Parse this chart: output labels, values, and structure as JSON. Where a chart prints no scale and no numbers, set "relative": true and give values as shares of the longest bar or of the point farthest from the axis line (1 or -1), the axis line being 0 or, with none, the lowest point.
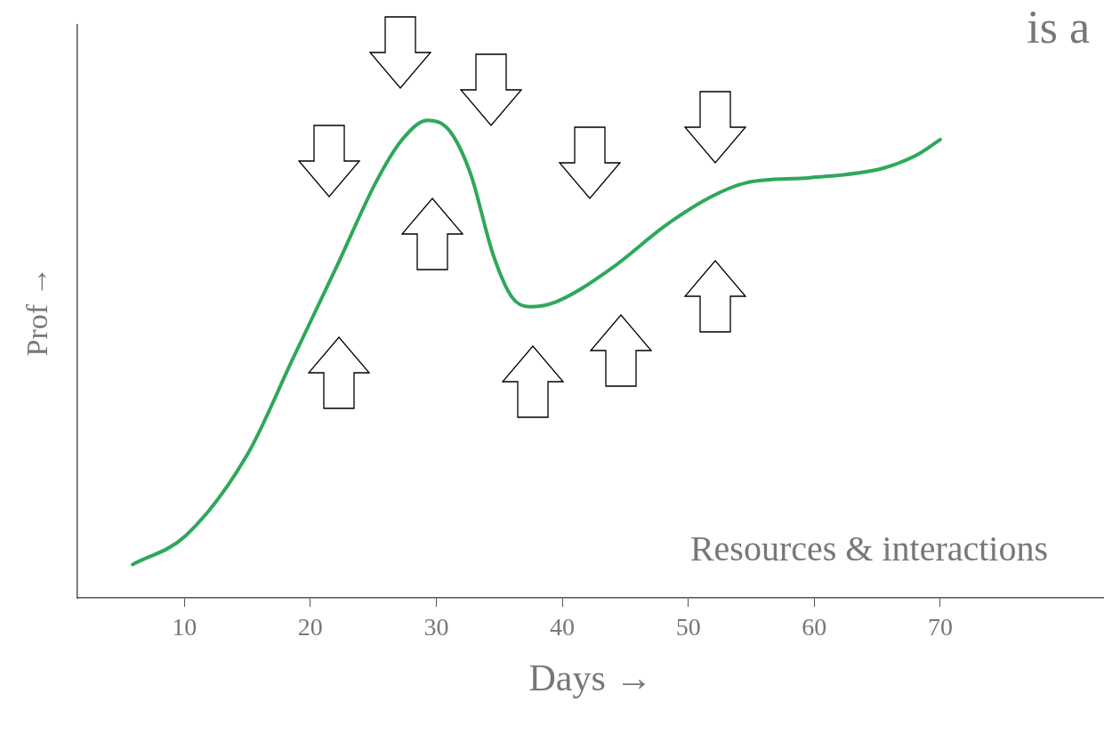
{
  "chart_data": {
    "type": "line",
    "relative": true,
    "xlabel": "Days →",
    "ylabel": "Prof →",
    "annotations": [
      "is a",
      "Resources & interactions"
    ],
    "x": [
      5.9,
      10.1,
      15,
      18.6,
      22.2,
      25.2,
      27.3,
      29.3,
      31,
      32.7,
      34.5,
      36,
      37.4,
      39.5,
      43.9,
      48.2,
      51.8,
      54.7,
      59.7,
      65.5,
      68.3,
      70
    ],
    "xlim": [
      1.5,
      83
    ],
    "xticks": [
      10,
      20,
      30,
      40,
      50,
      60,
      70
    ],
    "grid": false,
    "legend": false,
    "marker": "none",
    "line_style": "solid",
    "series": [
      {
        "color": "#2ea85a",
        "values": [
          0.07,
          0.13,
          0.3,
          0.5,
          0.7,
          0.87,
          0.96,
          1,
          0.98,
          0.89,
          0.72,
          0.63,
          0.61,
          0.62,
          0.69,
          0.78,
          0.84,
          0.87,
          0.88,
          0.9,
          0.93,
          0.96
        ]
      }
    ]
  }
}
